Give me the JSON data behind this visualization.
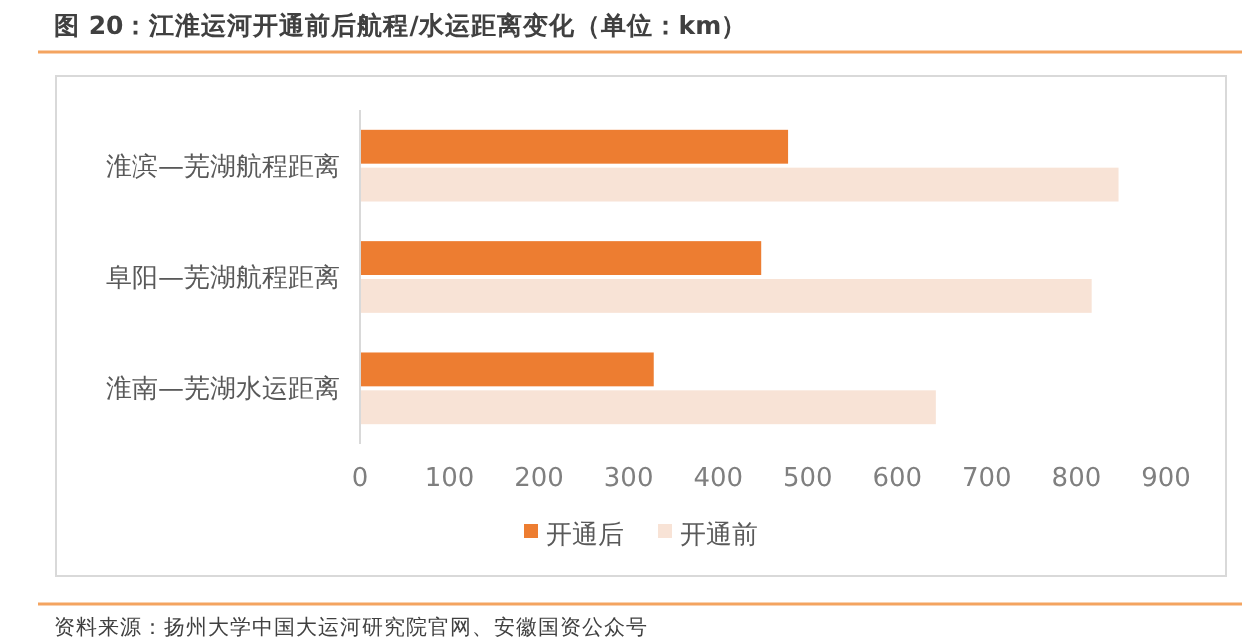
{
  "chart_data": {
    "type": "bar",
    "orientation": "horizontal",
    "title": "图 20：江淮运河开通前后航程/水运距离变化（单位：km）",
    "categories": [
      "淮滨—芜湖航程距离",
      "阜阳—芜湖航程距离",
      "淮南—芜湖水运距离"
    ],
    "series": [
      {
        "name": "开通后",
        "color": "#ed7d31",
        "values": [
          478,
          448,
          328
        ]
      },
      {
        "name": "开通前",
        "color": "#f8e3d6",
        "values": [
          847,
          817,
          643
        ]
      }
    ],
    "xlim": [
      0,
      900
    ],
    "xticks": [
      0,
      100,
      200,
      300,
      400,
      500,
      600,
      700,
      800,
      900
    ],
    "grid": false,
    "legend": "bottom",
    "annotations": [
      "资料来源：扬州大学中国大运河研究院官网、安徽国资公众号"
    ]
  }
}
